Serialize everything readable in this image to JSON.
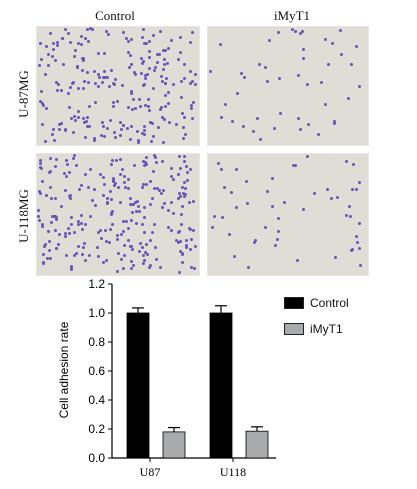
{
  "figure": {
    "column_labels": [
      "Control",
      "iMyT1"
    ],
    "row_labels": [
      "U-87MG",
      "U-118MG"
    ]
  },
  "chart_data": {
    "type": "bar",
    "categories": [
      "U87",
      "U118"
    ],
    "series": [
      {
        "name": "Control",
        "values": [
          1.0,
          1.0
        ],
        "errors": [
          0.035,
          0.05
        ],
        "color": "#000000"
      },
      {
        "name": "iMyT1",
        "values": [
          0.18,
          0.185
        ],
        "errors": [
          0.03,
          0.03
        ],
        "color": "#a9aaac"
      }
    ],
    "title": "",
    "xlabel": "",
    "ylabel": "Cell adhesion rate",
    "ylim": [
      0,
      1.2
    ],
    "yticks": [
      0,
      0.2,
      0.4,
      0.6,
      0.8,
      1.0,
      1.2
    ],
    "ytick_labels": [
      "0.0",
      "0.2",
      "0.4",
      "0.6",
      "0.8",
      "1.0",
      "1.2"
    ],
    "legend_position": "top-right",
    "grid": false
  }
}
